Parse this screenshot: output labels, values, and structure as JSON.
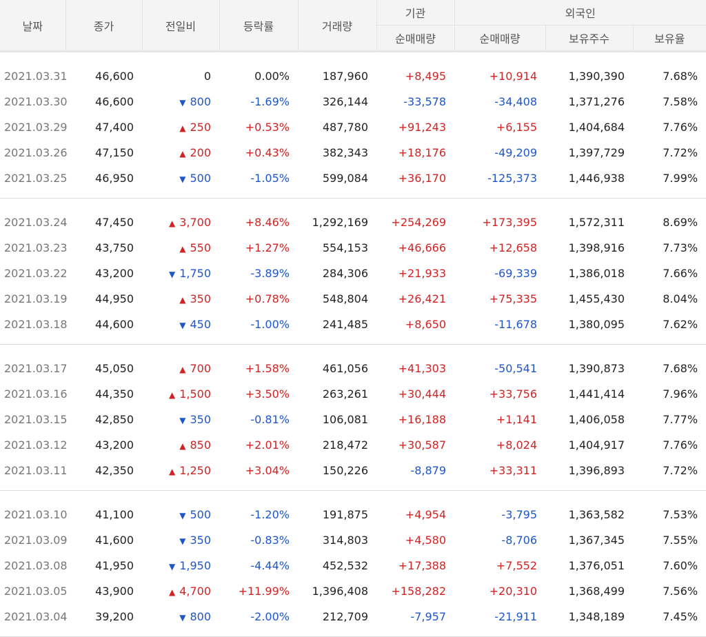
{
  "headers": {
    "date": "날짜",
    "close": "종가",
    "change": "전일비",
    "rate": "등락률",
    "volume": "거래량",
    "institution": "기관",
    "institution_net": "순매매량",
    "foreign": "외국인",
    "foreign_net": "순매매량",
    "foreign_hold": "보유주수",
    "foreign_ratio": "보유율"
  },
  "groups": [
    [
      {
        "date": "2021.03.31",
        "close": "46,600",
        "change": "0",
        "dir": "flat",
        "rate": "0.00%",
        "volume": "187,960",
        "inst": "+8,495",
        "foreign": "+10,914",
        "hold": "1,390,390",
        "ratio": "7.68%"
      },
      {
        "date": "2021.03.30",
        "close": "46,600",
        "change": "800",
        "dir": "down",
        "rate": "-1.69%",
        "volume": "326,144",
        "inst": "-33,578",
        "foreign": "-34,408",
        "hold": "1,371,276",
        "ratio": "7.58%"
      },
      {
        "date": "2021.03.29",
        "close": "47,400",
        "change": "250",
        "dir": "up",
        "rate": "+0.53%",
        "volume": "487,780",
        "inst": "+91,243",
        "foreign": "+6,155",
        "hold": "1,404,684",
        "ratio": "7.76%"
      },
      {
        "date": "2021.03.26",
        "close": "47,150",
        "change": "200",
        "dir": "up",
        "rate": "+0.43%",
        "volume": "382,343",
        "inst": "+18,176",
        "foreign": "-49,209",
        "hold": "1,397,729",
        "ratio": "7.72%"
      },
      {
        "date": "2021.03.25",
        "close": "46,950",
        "change": "500",
        "dir": "down",
        "rate": "-1.05%",
        "volume": "599,084",
        "inst": "+36,170",
        "foreign": "-125,373",
        "hold": "1,446,938",
        "ratio": "7.99%"
      }
    ],
    [
      {
        "date": "2021.03.24",
        "close": "47,450",
        "change": "3,700",
        "dir": "up",
        "rate": "+8.46%",
        "volume": "1,292,169",
        "inst": "+254,269",
        "foreign": "+173,395",
        "hold": "1,572,311",
        "ratio": "8.69%"
      },
      {
        "date": "2021.03.23",
        "close": "43,750",
        "change": "550",
        "dir": "up",
        "rate": "+1.27%",
        "volume": "554,153",
        "inst": "+46,666",
        "foreign": "+12,658",
        "hold": "1,398,916",
        "ratio": "7.73%"
      },
      {
        "date": "2021.03.22",
        "close": "43,200",
        "change": "1,750",
        "dir": "down",
        "rate": "-3.89%",
        "volume": "284,306",
        "inst": "+21,933",
        "foreign": "-69,339",
        "hold": "1,386,018",
        "ratio": "7.66%"
      },
      {
        "date": "2021.03.19",
        "close": "44,950",
        "change": "350",
        "dir": "up",
        "rate": "+0.78%",
        "volume": "548,804",
        "inst": "+26,421",
        "foreign": "+75,335",
        "hold": "1,455,430",
        "ratio": "8.04%"
      },
      {
        "date": "2021.03.18",
        "close": "44,600",
        "change": "450",
        "dir": "down",
        "rate": "-1.00%",
        "volume": "241,485",
        "inst": "+8,650",
        "foreign": "-11,678",
        "hold": "1,380,095",
        "ratio": "7.62%"
      }
    ],
    [
      {
        "date": "2021.03.17",
        "close": "45,050",
        "change": "700",
        "dir": "up",
        "rate": "+1.58%",
        "volume": "461,056",
        "inst": "+41,303",
        "foreign": "-50,541",
        "hold": "1,390,873",
        "ratio": "7.68%"
      },
      {
        "date": "2021.03.16",
        "close": "44,350",
        "change": "1,500",
        "dir": "up",
        "rate": "+3.50%",
        "volume": "263,261",
        "inst": "+30,444",
        "foreign": "+33,756",
        "hold": "1,441,414",
        "ratio": "7.96%"
      },
      {
        "date": "2021.03.15",
        "close": "42,850",
        "change": "350",
        "dir": "down",
        "rate": "-0.81%",
        "volume": "106,081",
        "inst": "+16,188",
        "foreign": "+1,141",
        "hold": "1,406,058",
        "ratio": "7.77%"
      },
      {
        "date": "2021.03.12",
        "close": "43,200",
        "change": "850",
        "dir": "up",
        "rate": "+2.01%",
        "volume": "218,472",
        "inst": "+30,587",
        "foreign": "+8,024",
        "hold": "1,404,917",
        "ratio": "7.76%"
      },
      {
        "date": "2021.03.11",
        "close": "42,350",
        "change": "1,250",
        "dir": "up",
        "rate": "+3.04%",
        "volume": "150,226",
        "inst": "-8,879",
        "foreign": "+33,311",
        "hold": "1,396,893",
        "ratio": "7.72%"
      }
    ],
    [
      {
        "date": "2021.03.10",
        "close": "41,100",
        "change": "500",
        "dir": "down",
        "rate": "-1.20%",
        "volume": "191,875",
        "inst": "+4,954",
        "foreign": "-3,795",
        "hold": "1,363,582",
        "ratio": "7.53%"
      },
      {
        "date": "2021.03.09",
        "close": "41,600",
        "change": "350",
        "dir": "down",
        "rate": "-0.83%",
        "volume": "314,803",
        "inst": "+4,580",
        "foreign": "-8,706",
        "hold": "1,367,345",
        "ratio": "7.55%"
      },
      {
        "date": "2021.03.08",
        "close": "41,950",
        "change": "1,950",
        "dir": "down",
        "rate": "-4.44%",
        "volume": "452,532",
        "inst": "+17,388",
        "foreign": "+7,552",
        "hold": "1,376,051",
        "ratio": "7.60%"
      },
      {
        "date": "2021.03.05",
        "close": "43,900",
        "change": "4,700",
        "dir": "up",
        "rate": "+11.99%",
        "volume": "1,396,408",
        "inst": "+158,282",
        "foreign": "+20,310",
        "hold": "1,368,499",
        "ratio": "7.56%"
      },
      {
        "date": "2021.03.04",
        "close": "39,200",
        "change": "800",
        "dir": "down",
        "rate": "-2.00%",
        "volume": "212,709",
        "inst": "-7,957",
        "foreign": "-21,911",
        "hold": "1,348,189",
        "ratio": "7.45%"
      }
    ]
  ],
  "colors": {
    "up": "#d12323",
    "down": "#1e56c8",
    "header_bg": "#f4f4f4",
    "date": "#777777"
  },
  "icons": {
    "up": "triangle-up-icon",
    "down": "triangle-down-icon"
  }
}
